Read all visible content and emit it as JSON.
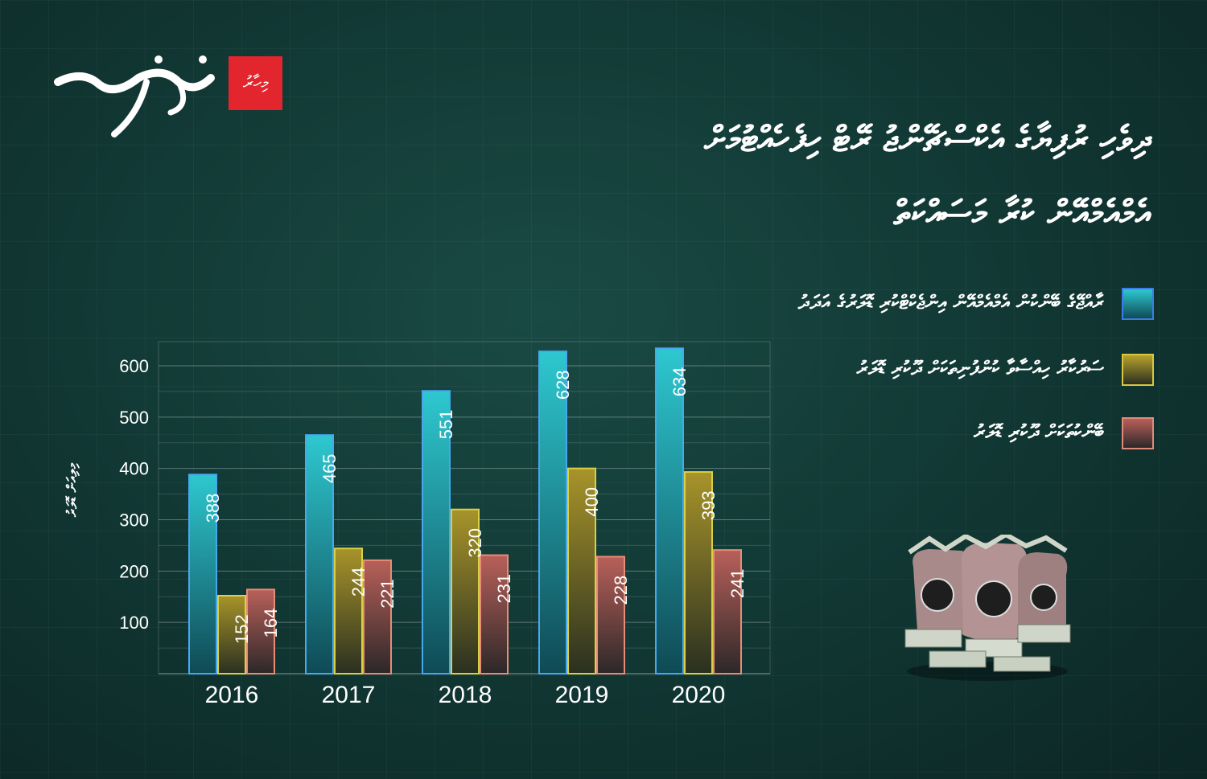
{
  "brand": {
    "logo_text": "ވަގުތު",
    "badge_text": "މިހާރު"
  },
  "title_lines": [
    "ދިވެހި ރުފިޔާގެ އެކްސްޗޭންޖު ރޭޓް ހިފެހެއްޓުމަށް",
    "އެމްއެމްއޭން ކުރާ މަސައްކަތް"
  ],
  "legend": [
    {
      "label": "ރާއްޖޭގެ ބޭންކުން އެމްއެމްއޭން އިންޖެކްޓްކުރި ޑޮލަރުގެ އަދަދު",
      "color": "#2ec8d0",
      "border": "#3a7de8"
    },
    {
      "label": "ސަރުކާރު ހިއްސާވާ ކުންފުނިތަކަށް ދޫކުރި ޑޮލަރު",
      "color": "#b7a22c",
      "border": "#d7c63e"
    },
    {
      "label": "ބޭންކުތަކަށް ދޫކުރި ޑޮލަރު",
      "color": "#b9605a",
      "border": "#e18a7c"
    }
  ],
  "chart_data": {
    "type": "bar",
    "categories": [
      "2016",
      "2017",
      "2018",
      "2019",
      "2020"
    ],
    "ylabel": "މިލިއަން ޑޮލަރު",
    "ylim": [
      0,
      600
    ],
    "yticks": [
      "100",
      "200",
      "300",
      "400",
      "500",
      "600"
    ],
    "grid": true,
    "legend_position": "top-right",
    "series": [
      {
        "name": "ރާއްޖޭގެ ބޭންކުން އެމްއެމްއޭން އިންޖެކްޓްކުރި ޑޮލަރުގެ އަދަދު",
        "values": [
          388,
          465,
          551,
          628,
          634
        ]
      },
      {
        "name": "ސަރުކާރު ހިއްސާވާ ކުންފުނިތަކަށް ދޫކުރި ޑޮލަރު",
        "values": [
          152,
          244,
          320,
          400,
          393
        ]
      },
      {
        "name": "ބޭންކުތަކަށް ދޫކުރި ޑޮލަރު",
        "values": [
          164,
          221,
          231,
          228,
          241
        ]
      }
    ],
    "series_colors": [
      {
        "top": "#2ec8d0",
        "bottom": "#0f4a55",
        "edge": "#46a8f0"
      },
      {
        "top": "#a8942a",
        "bottom": "#2a3020",
        "edge": "#d9d046"
      },
      {
        "top": "#b9605a",
        "bottom": "#2c2828",
        "edge": "#e78c76"
      }
    ]
  }
}
